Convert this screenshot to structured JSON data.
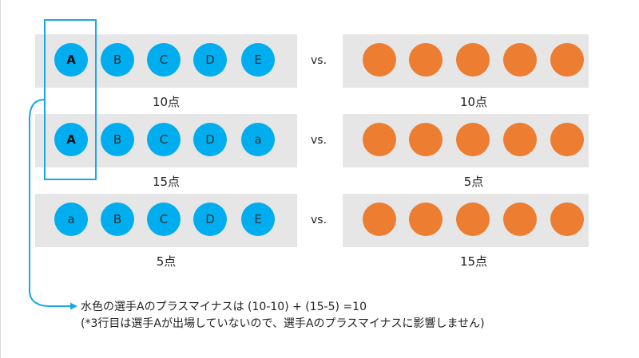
{
  "colors": {
    "team_blue": "#00aeef",
    "team_orange": "#ed7d31",
    "row_bg": "#e6e6e6",
    "highlight": "#1aa7e6"
  },
  "rows": [
    {
      "left": {
        "dots": [
          "A",
          "B",
          "C",
          "D",
          "E"
        ],
        "score": "10点"
      },
      "vs": "vs.",
      "right": {
        "score": "10点"
      }
    },
    {
      "left": {
        "dots": [
          "A",
          "B",
          "C",
          "D",
          "a"
        ],
        "score": "15点"
      },
      "vs": "vs.",
      "right": {
        "score": "5点"
      }
    },
    {
      "left": {
        "dots": [
          "a",
          "B",
          "C",
          "D",
          "E"
        ],
        "score": "5点"
      },
      "vs": "vs.",
      "right": {
        "score": "15点"
      }
    }
  ],
  "caption": {
    "line1": "水色の選手Aのプラスマイナスは (10-10) + (15-5) =10",
    "line2": "(*3行目は選手Aが出場していないので、選手Aのプラスマイナスに影響しません)"
  }
}
